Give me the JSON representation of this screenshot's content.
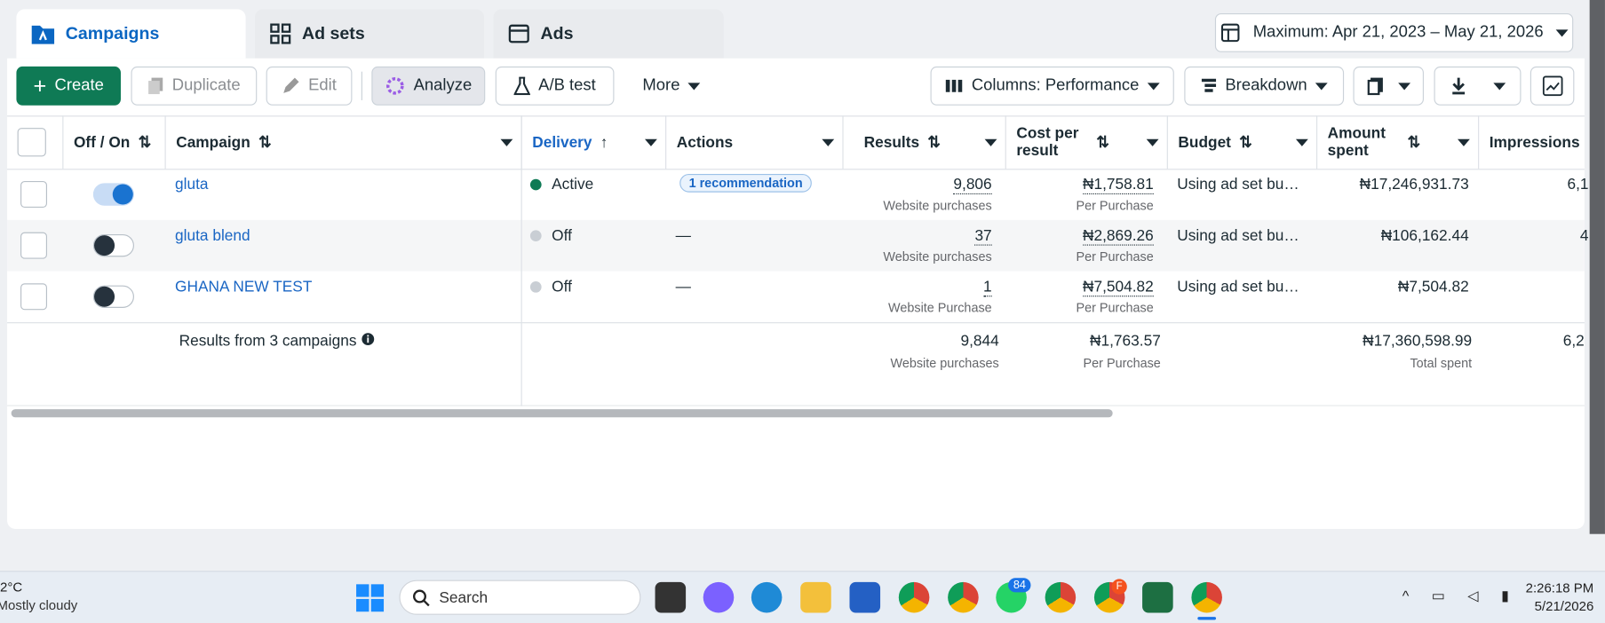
{
  "tabs": [
    "Campaigns",
    "Ad sets",
    "Ads"
  ],
  "date_range": "Maximum: Apr 21, 2023 – May 21, 2026",
  "toolbar": {
    "create": "Create",
    "duplicate": "Duplicate",
    "edit": "Edit",
    "analyze": "Analyze",
    "ab_test": "A/B test",
    "more": "More",
    "columns": "Columns: Performance",
    "breakdown": "Breakdown"
  },
  "table": {
    "columns": [
      "Off / On",
      "Campaign",
      "Delivery",
      "Actions",
      "Results",
      "Cost per result",
      "Budget",
      "Amount spent",
      "Impressions"
    ],
    "rows": [
      {
        "name": "gluta",
        "delivery": "Active",
        "action": "1 recommendation",
        "results": "9,806",
        "results_label": "Website purchases",
        "cost": "₦1,758.81",
        "cost_label": "Per Purchase",
        "budget": "Using ad set bu…",
        "spent": "₦17,246,931.73",
        "impressions": "6,1"
      },
      {
        "name": "gluta blend",
        "delivery": "Off",
        "action": "—",
        "results": "37",
        "results_label": "Website purchases",
        "cost": "₦2,869.26",
        "cost_label": "Per Purchase",
        "budget": "Using ad set bu…",
        "spent": "₦106,162.44",
        "impressions": "4"
      },
      {
        "name": "GHANA NEW TEST",
        "delivery": "Off",
        "action": "—",
        "results": "1",
        "results_label": "Website Purchase",
        "cost": "₦7,504.82",
        "cost_label": "Per Purchase",
        "budget": "Using ad set bu…",
        "spent": "₦7,504.82"
      }
    ],
    "summary": {
      "label": "Results from 3 campaigns",
      "results": "9,844",
      "results_label": "Website purchases",
      "cost": "₦1,763.57",
      "cost_label": "Per Purchase",
      "spent": "₦17,360,598.99",
      "spent_label": "Total spent",
      "impressions": "6,2"
    }
  },
  "taskbar": {
    "temperature": "2°C",
    "weather": "Mostly cloudy",
    "search": "Search",
    "badge_whatsapp": "84",
    "badge_chrome": "F",
    "time": "2:26:18 PM",
    "date": "5/21/2026"
  }
}
